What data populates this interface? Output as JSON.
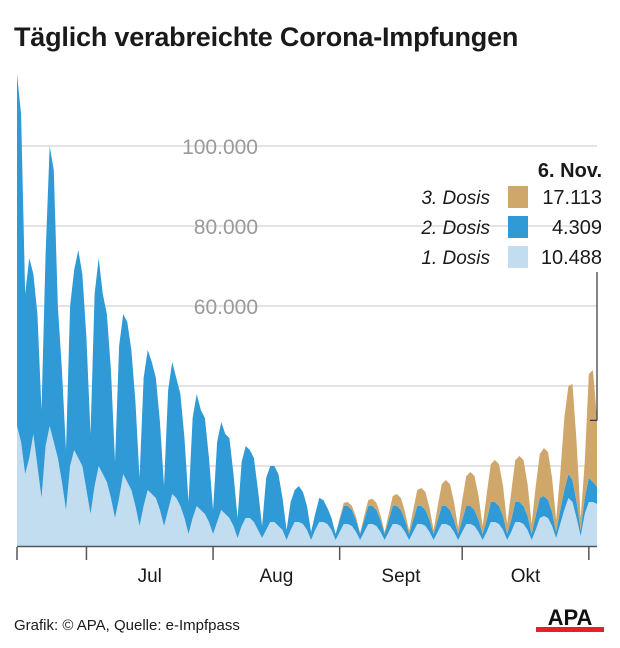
{
  "title": "Täglich verabreichte Corona-Impfungen",
  "source": "Grafik: © APA, Quelle: e-Impfpass",
  "logo_text": "APA",
  "colors": {
    "dose1": "#c3ddf0",
    "dose2": "#2f9ad6",
    "dose3": "#cfa76a",
    "grid": "#c8c8c8",
    "axis": "#555555",
    "tick_label": "#9a9a9a",
    "logo_red": "#e4212b"
  },
  "legend": {
    "date": "6. Nov.",
    "items": [
      {
        "label": "3. Dosis",
        "value": "17.113",
        "color": "#cfa76a"
      },
      {
        "label": "2. Dosis",
        "value": "4.309",
        "color": "#2f9ad6"
      },
      {
        "label": "1. Dosis",
        "value": "10.488",
        "color": "#c3ddf0"
      }
    ]
  },
  "chart_data": {
    "type": "area",
    "stacked": true,
    "x_unit": "day",
    "x_start": "2021-06-14",
    "x_end": "2021-11-06",
    "x_tick_labels": [
      "Jul",
      "Aug",
      "Sept",
      "Okt"
    ],
    "y_tick_labels": [
      "100.000",
      "80.000",
      "60.000"
    ],
    "y_ticks": [
      20000,
      40000,
      60000,
      80000,
      100000
    ],
    "ylim": [
      0,
      120000
    ],
    "grid": true,
    "legend_position": "right",
    "series": [
      {
        "name": "1. Dosis",
        "values": [
          30000,
          26000,
          18000,
          22000,
          28000,
          20000,
          12000,
          25000,
          30000,
          26000,
          22000,
          16000,
          9000,
          20000,
          24000,
          22000,
          20000,
          14000,
          8000,
          15000,
          20000,
          18000,
          16000,
          12000,
          7000,
          12000,
          18000,
          16000,
          14000,
          10000,
          5000,
          10000,
          14000,
          13000,
          12000,
          9000,
          5000,
          9000,
          13000,
          12000,
          10000,
          7000,
          3000,
          7000,
          10000,
          9000,
          8000,
          6000,
          3000,
          6000,
          9000,
          8000,
          7000,
          5000,
          2000,
          5000,
          7000,
          7000,
          6000,
          4000,
          2000,
          4000,
          6000,
          6000,
          5000,
          4000,
          1500,
          4000,
          6000,
          6000,
          5500,
          4000,
          1500,
          4000,
          6000,
          6000,
          5500,
          4000,
          1500,
          3500,
          5500,
          5500,
          5000,
          3500,
          1500,
          3500,
          5500,
          5500,
          5000,
          3500,
          1500,
          3500,
          5500,
          5500,
          5000,
          3500,
          1500,
          3500,
          5500,
          5500,
          5000,
          3500,
          1500,
          3500,
          5500,
          5500,
          5000,
          3500,
          1500,
          3500,
          5500,
          5500,
          5000,
          3500,
          1500,
          3500,
          6000,
          6000,
          5500,
          4000,
          1500,
          3500,
          6000,
          6000,
          5500,
          4000,
          1500,
          4000,
          7000,
          7500,
          7000,
          5000,
          2000,
          5500,
          9000,
          12000,
          11000,
          7000,
          2500,
          8000,
          11000,
          11000,
          10488
        ]
      },
      {
        "name": "2. Dosis",
        "values": [
          88000,
          82000,
          45000,
          50000,
          40000,
          38000,
          22000,
          48000,
          70000,
          68000,
          38000,
          28000,
          15000,
          40000,
          45000,
          52000,
          48000,
          38000,
          20000,
          48000,
          52000,
          45000,
          42000,
          32000,
          14000,
          38000,
          40000,
          40000,
          35000,
          26000,
          12000,
          32000,
          35000,
          33000,
          30000,
          22000,
          10000,
          30000,
          33000,
          30000,
          28000,
          20000,
          8000,
          25000,
          28000,
          25000,
          24000,
          16000,
          6000,
          20000,
          22000,
          20000,
          20000,
          13000,
          5000,
          16000,
          18000,
          17000,
          16000,
          10000,
          3000,
          13000,
          14000,
          14000,
          13000,
          8000,
          2500,
          7000,
          8000,
          9000,
          8000,
          6000,
          2000,
          4000,
          6000,
          5500,
          4000,
          3000,
          1500,
          3000,
          4500,
          4500,
          4000,
          3000,
          1500,
          3000,
          4500,
          4500,
          4000,
          3000,
          1500,
          3000,
          4500,
          4500,
          4000,
          3000,
          1500,
          3000,
          4500,
          4500,
          4000,
          3000,
          1500,
          3000,
          4500,
          4500,
          4000,
          3000,
          1500,
          3000,
          4500,
          4500,
          4000,
          3000,
          1500,
          3000,
          5000,
          5000,
          4500,
          3500,
          1500,
          3000,
          5000,
          5000,
          4500,
          3500,
          1500,
          3500,
          5000,
          5000,
          4500,
          3500,
          1500,
          3500,
          5000,
          6000,
          5500,
          4000,
          1500,
          4000,
          6000,
          5000,
          4309
        ]
      },
      {
        "name": "3. Dosis",
        "values": [
          0,
          0,
          0,
          0,
          0,
          0,
          0,
          0,
          0,
          0,
          0,
          0,
          0,
          0,
          0,
          0,
          0,
          0,
          0,
          0,
          0,
          0,
          0,
          0,
          0,
          0,
          0,
          0,
          0,
          0,
          0,
          0,
          0,
          0,
          0,
          0,
          0,
          0,
          0,
          0,
          0,
          0,
          0,
          0,
          0,
          0,
          0,
          0,
          0,
          0,
          0,
          0,
          0,
          0,
          0,
          0,
          0,
          0,
          0,
          0,
          0,
          0,
          0,
          0,
          0,
          0,
          0,
          0,
          0,
          0,
          0,
          0,
          0,
          0,
          0,
          0,
          0,
          0,
          0,
          500,
          800,
          1000,
          1000,
          800,
          300,
          1000,
          1500,
          1800,
          1800,
          1200,
          500,
          1500,
          2500,
          3000,
          3000,
          2000,
          800,
          2500,
          4000,
          4500,
          4500,
          3000,
          1000,
          3500,
          5500,
          6500,
          6500,
          4500,
          1500,
          5000,
          7500,
          8500,
          8500,
          6000,
          2000,
          6500,
          9500,
          10500,
          10500,
          7500,
          2500,
          7000,
          10500,
          11500,
          11500,
          8000,
          2500,
          7500,
          11000,
          12000,
          12000,
          8500,
          3000,
          9000,
          18000,
          22000,
          24000,
          15000,
          3000,
          9000,
          26000,
          28000,
          17113
        ]
      }
    ]
  }
}
